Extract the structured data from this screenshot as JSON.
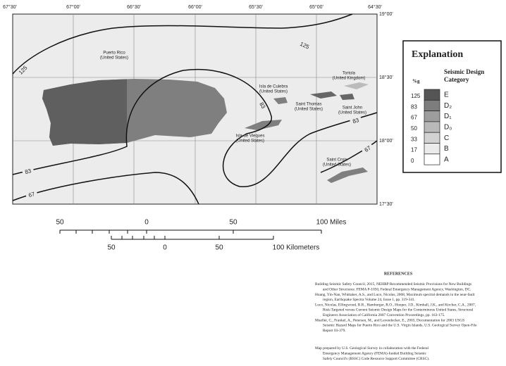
{
  "map": {
    "longitude_labels": [
      "67°30'",
      "67°00'",
      "66°30'",
      "66°00'",
      "65°30'",
      "65°00'",
      "64°30'"
    ],
    "latitude_labels": [
      "19°00'",
      "18°30'",
      "18°00'",
      "17°30'"
    ],
    "places": [
      {
        "name": "Puerto Rico",
        "country": "(United States)"
      },
      {
        "name": "Isla de Culebra",
        "country": "(United States)"
      },
      {
        "name": "Tortola",
        "country": "(United Kingdom)"
      },
      {
        "name": "Saint Thomas",
        "country": "(United States)"
      },
      {
        "name": "Saint John",
        "country": "(United States)"
      },
      {
        "name": "Isla de Vieques",
        "country": "(United States)"
      },
      {
        "name": "Saint Croix",
        "country": "(United States)"
      }
    ],
    "contour_labels": [
      "125",
      "125",
      "83",
      "83",
      "83",
      "67",
      "67"
    ]
  },
  "legend": {
    "title": "Explanation",
    "unit": "%g",
    "category_title": [
      "Seismic Design",
      "Category"
    ],
    "rows": [
      {
        "value": "125",
        "category": "E"
      },
      {
        "value": "83",
        "category": "D₂"
      },
      {
        "value": "67",
        "category": "D₁"
      },
      {
        "value": "50",
        "category": "D₀"
      },
      {
        "value": "33",
        "category": "C"
      },
      {
        "value": "17",
        "category": "B"
      },
      {
        "value": "0",
        "category": "A"
      }
    ]
  },
  "scale": {
    "miles": [
      "50",
      "0",
      "50",
      "100 Miles"
    ],
    "kilometers": [
      "50",
      "0",
      "50",
      "100 Kilometers"
    ]
  },
  "references": {
    "title": "REFERENCES",
    "entries": [
      [
        "Building Seismic Safety Council, 2015, NEHRP Recommended Seismic Provisions for New Buildings",
        "and Other Structures: FEMA P-1050, Federal Emergency Management Agency, Washington, DC."
      ],
      [
        "Huang, Yin-Nan, Whittaker, A.S., and Luco, Nicolas, 2008, Maximum spectral demands in the near-fault",
        "region, Earthquake Spectra Volume 24, Issue 1, pp. 319-341."
      ],
      [
        "Luco, Nicolas, Ellingwood, B.R., Hamburger, R.O., Hooper, J.D., Kimball, J.K., and Kircher, C.A., 2007,",
        "Risk-Targeted versus Current Seismic Design Maps for the Conterminous United States, Structural",
        "Engineers Association of California 2007 Convention Proceedings, pp. 163-175."
      ],
      [
        "Mueller, C., Frankel, A., Petersen, M., and Leyendecker, E., 2003, Documentation for 2003 USGS",
        "Seismic Hazard Maps for Puerto Rico and the U.S. Virgin Islands, U.S. Geological Survey Open-File",
        "Report 03-379."
      ]
    ]
  },
  "credit": [
    "Map prepared by U.S. Geological Survey in collaboration with the Federal",
    "Emergency Management Agency (FEMA)-funded Building Seismic",
    "Safety Council's (BSSC) Code Resource Support Committee (CRSC)."
  ]
}
